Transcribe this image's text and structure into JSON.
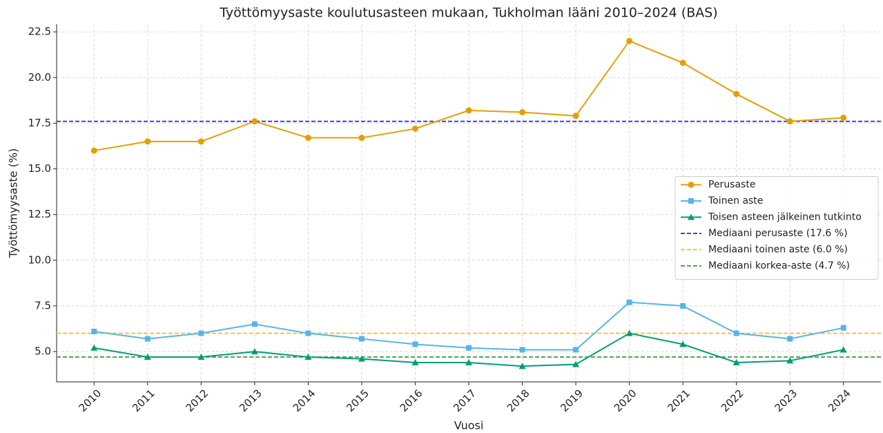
{
  "chart_data": {
    "type": "line",
    "title": "Työttömyysaste koulutusasteen mukaan, Tukholman lääni 2010–2024 (BAS)",
    "xlabel": "Vuosi",
    "ylabel": "Työttömyysaste (%)",
    "x": [
      2010,
      2011,
      2012,
      2013,
      2014,
      2015,
      2016,
      2017,
      2018,
      2019,
      2020,
      2021,
      2022,
      2023,
      2024
    ],
    "series": [
      {
        "name": "Perusaste",
        "color": "#e69f00",
        "marker": "circle",
        "values": [
          16.0,
          16.5,
          16.5,
          17.6,
          16.7,
          16.7,
          17.2,
          18.2,
          18.1,
          17.9,
          22.0,
          20.8,
          19.1,
          17.6,
          17.8
        ]
      },
      {
        "name": "Toinen aste",
        "color": "#56b4e9",
        "marker": "square",
        "values": [
          6.1,
          5.7,
          6.0,
          6.5,
          6.0,
          5.7,
          5.4,
          5.2,
          5.1,
          5.1,
          7.7,
          7.5,
          6.0,
          5.7,
          6.3
        ]
      },
      {
        "name": "Toisen asteen jälkeinen tutkinto",
        "color": "#009e73",
        "marker": "triangle",
        "values": [
          5.2,
          4.7,
          4.7,
          5.0,
          4.7,
          4.6,
          4.4,
          4.4,
          4.2,
          4.3,
          6.0,
          5.4,
          4.4,
          4.5,
          5.1
        ]
      }
    ],
    "hlines": [
      {
        "name": "Mediaani perusaste (17.6 %)",
        "color": "#3b3bf0",
        "value": 17.6
      },
      {
        "name": "Mediaani toinen aste (6.0 %)",
        "color": "#f5c04a",
        "value": 6.0
      },
      {
        "name": "Mediaani korkea-aste (4.7 %)",
        "color": "#4caa4c",
        "value": 4.7
      }
    ],
    "xlim": [
      2009.3,
      2024.7
    ],
    "ylim": [
      3.34,
      22.92
    ],
    "xticks": [
      2010,
      2011,
      2012,
      2013,
      2014,
      2015,
      2016,
      2017,
      2018,
      2019,
      2020,
      2021,
      2022,
      2023,
      2024
    ],
    "yticks": [
      {
        "value": 5,
        "label": "5.0"
      },
      7.5,
      {
        "value": 10,
        "label": "10.0"
      },
      12.5,
      {
        "value": 15,
        "label": "15.0"
      },
      17.5,
      {
        "value": 20,
        "label": "20.0"
      },
      22.5
    ],
    "grid": true,
    "legend_position": "center right"
  }
}
